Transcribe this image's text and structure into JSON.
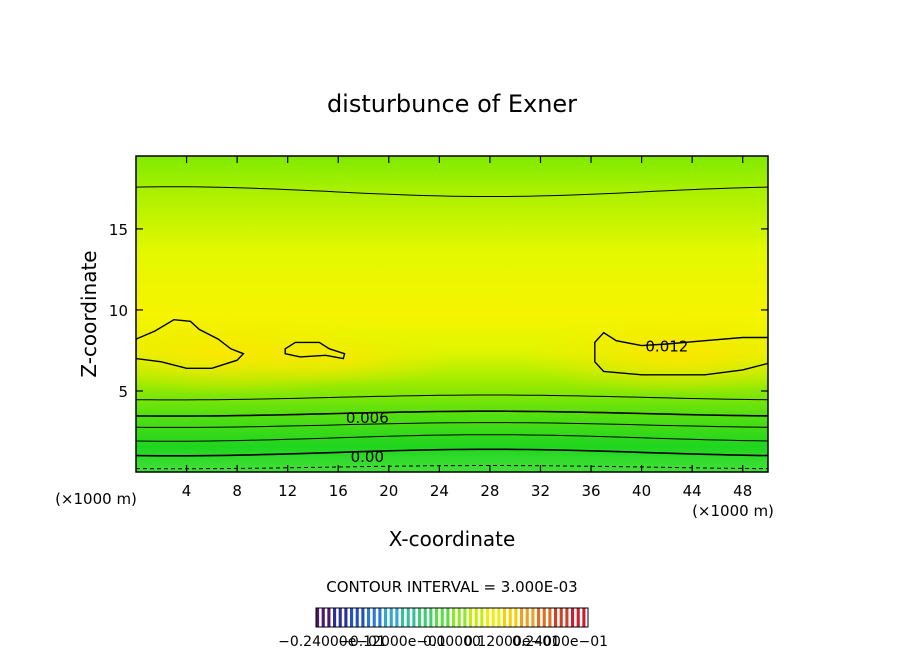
{
  "chart_data": {
    "type": "contour",
    "title": "disturbunce of Exner",
    "xlabel": "X-coordinate",
    "ylabel": "Z-coordinate",
    "x_unit_left": "(×1000 m)",
    "x_unit_right": "(×1000 m)",
    "xlim": [
      0,
      50
    ],
    "ylim": [
      0,
      19.5
    ],
    "x_ticks": [
      4,
      8,
      12,
      16,
      20,
      24,
      28,
      32,
      36,
      40,
      44,
      48
    ],
    "y_ticks": [
      5,
      10,
      15
    ],
    "contour_interval_text": "CONTOUR INTERVAL = 3.000E-03",
    "contour_labels": [
      {
        "text": "0.012",
        "x": 42,
        "y": 7.8
      },
      {
        "text": "0.006",
        "x": 18.3,
        "y": 3.4
      },
      {
        "text": "0.00",
        "x": 18.3,
        "y": 1.0
      }
    ],
    "colorbar_tick_text": "−0.24000e−01",
    "colorbar_overlap_text": "−0.12000e−01",
    "colorbar_mid_text": "0.00000",
    "colorbar_right_text": "0.12000e−01",
    "colorbar_end_text": "0.24000e−01"
  },
  "colors": {
    "field_top": "#7fec00",
    "field_mid": "#f6f600",
    "field_bottom": "#16d61c",
    "contour": "#000000"
  }
}
